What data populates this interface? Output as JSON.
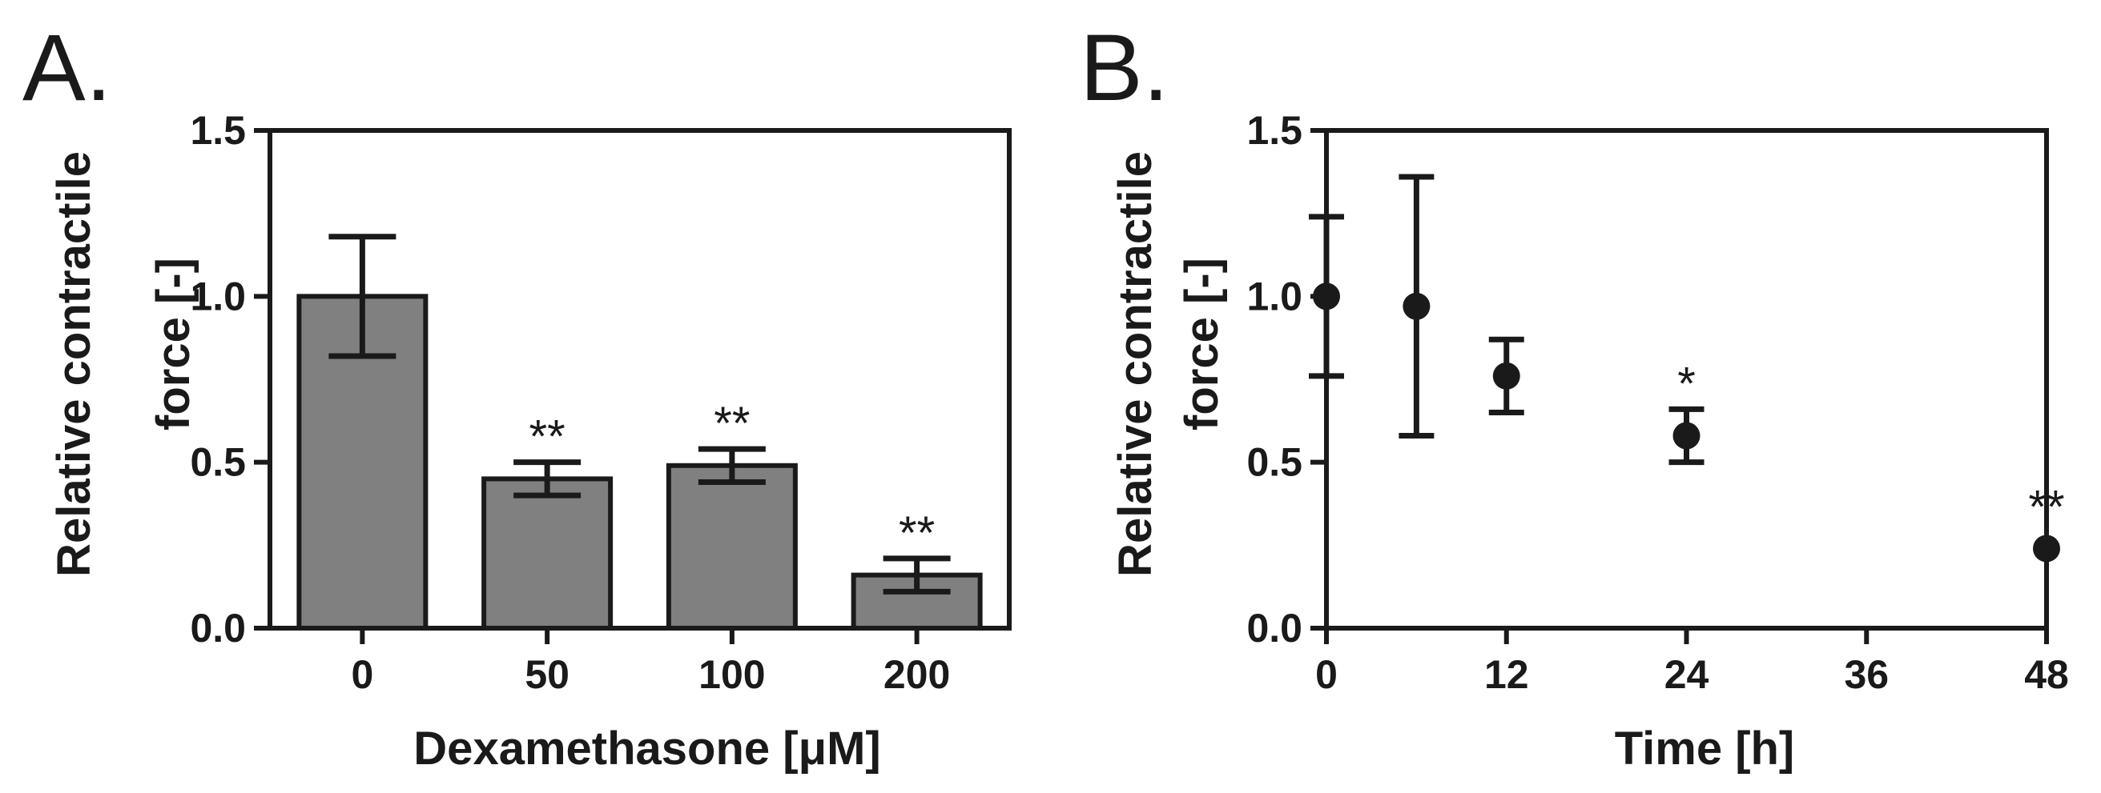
{
  "chart_data": [
    {
      "panel_label": "A.",
      "type": "bar",
      "categories": [
        "0",
        "50",
        "100",
        "200"
      ],
      "values": [
        1.0,
        0.45,
        0.49,
        0.16
      ],
      "errors": [
        0.18,
        0.05,
        0.05,
        0.05
      ],
      "significance": [
        "",
        "**",
        "**",
        "**"
      ],
      "xlabel": "Dexamethasone [μM]",
      "ylabel_line1": "Relative contractile",
      "ylabel_line2": "force [-]",
      "ylim": [
        0,
        1.5
      ],
      "yticks": [
        "0.0",
        "0.5",
        "1.0",
        "1.5"
      ],
      "bar_color": "#808080"
    },
    {
      "panel_label": "B.",
      "type": "scatter",
      "x": [
        0,
        6,
        12,
        24,
        48
      ],
      "y": [
        1.0,
        0.97,
        0.76,
        0.58,
        0.24
      ],
      "errors": [
        0.24,
        0.39,
        0.11,
        0.08,
        0.0
      ],
      "significance": [
        "",
        "",
        "",
        "*",
        "**"
      ],
      "xlabel": "Time [h]",
      "ylabel_line1": "Relative contractile",
      "ylabel_line2": "force [-]",
      "xlim": [
        0,
        48
      ],
      "ylim": [
        0,
        1.5
      ],
      "xticks": [
        "0",
        "12",
        "24",
        "36",
        "48"
      ],
      "yticks": [
        "0.0",
        "0.5",
        "1.0",
        "1.5"
      ],
      "marker_color": "#1a1a1a"
    }
  ]
}
